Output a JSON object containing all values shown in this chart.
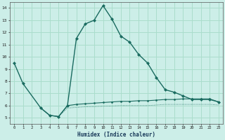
{
  "xlabel": "Humidex (Indice chaleur)",
  "background_color": "#cceee8",
  "grid_color": "#aaddcc",
  "line_color": "#1a6b60",
  "xlim": [
    -0.5,
    23.5
  ],
  "ylim": [
    4.5,
    14.5
  ],
  "xticks": [
    0,
    1,
    2,
    3,
    4,
    5,
    6,
    7,
    8,
    9,
    10,
    11,
    12,
    13,
    14,
    15,
    16,
    17,
    18,
    19,
    20,
    21,
    22,
    23
  ],
  "yticks": [
    5,
    6,
    7,
    8,
    9,
    10,
    11,
    12,
    13,
    14
  ],
  "line1_x": [
    0,
    1,
    3,
    4,
    5,
    6,
    7,
    8,
    9,
    10,
    11,
    12,
    13,
    14,
    15,
    16,
    17,
    18,
    19,
    20,
    21,
    22,
    23
  ],
  "line1_y": [
    9.5,
    7.8,
    5.8,
    5.2,
    5.1,
    6.0,
    11.5,
    12.7,
    13.0,
    14.2,
    13.1,
    11.7,
    11.2,
    10.2,
    9.5,
    8.3,
    7.3,
    7.1,
    6.8,
    6.5,
    6.5,
    6.5,
    6.3
  ],
  "line2_x": [
    3,
    4,
    5,
    6,
    7,
    8,
    9,
    10,
    11,
    12,
    13,
    14,
    15,
    16,
    17,
    18,
    19,
    20,
    21,
    22,
    23
  ],
  "line2_y": [
    5.8,
    5.2,
    5.1,
    6.0,
    6.1,
    6.15,
    6.2,
    6.25,
    6.3,
    6.35,
    6.35,
    6.4,
    6.4,
    6.45,
    6.5,
    6.5,
    6.55,
    6.55,
    6.55,
    6.55,
    6.3
  ],
  "line3_x": [
    3,
    4,
    5,
    6,
    7,
    8,
    9,
    10,
    11,
    12,
    13,
    14,
    15,
    16,
    17,
    18,
    19,
    20,
    21,
    22,
    23
  ],
  "line3_y": [
    5.8,
    5.2,
    5.1,
    5.8,
    5.85,
    5.9,
    5.92,
    5.95,
    5.97,
    6.0,
    6.0,
    6.0,
    6.0,
    6.05,
    6.1,
    6.1,
    6.1,
    6.1,
    6.1,
    6.1,
    6.05
  ]
}
